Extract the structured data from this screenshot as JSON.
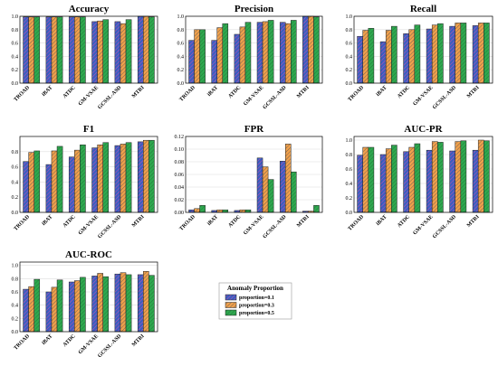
{
  "legend": {
    "title": "Anomaly Proportion",
    "entries": [
      "proportion=0.1",
      "proportion=0.3",
      "proportion=0.5"
    ]
  },
  "colors": {
    "proportion=0.1": "#3a5fc0",
    "proportion=0.3": "#f0a04b",
    "proportion=0.5": "#2fa84f"
  },
  "chart_data": [
    {
      "type": "bar",
      "title": "Accuracy",
      "categories": [
        "TROAD",
        "iBAT",
        "ATDC",
        "GM-VSAE",
        "GCSSL-ASD",
        "MTRI"
      ],
      "ylim": [
        0,
        1.0
      ],
      "yticks": [
        0.0,
        0.2,
        0.4,
        0.6,
        0.8,
        1.0
      ],
      "grid": true,
      "series": [
        {
          "name": "proportion=0.1",
          "values": [
            0.99,
            0.99,
            0.99,
            0.92,
            0.92,
            1.0
          ]
        },
        {
          "name": "proportion=0.3",
          "values": [
            0.99,
            0.99,
            0.99,
            0.93,
            0.89,
            1.0
          ]
        },
        {
          "name": "proportion=0.5",
          "values": [
            0.99,
            0.99,
            0.99,
            0.95,
            0.95,
            0.99
          ]
        }
      ]
    },
    {
      "type": "bar",
      "title": "Precision",
      "categories": [
        "TROAD",
        "iBAT",
        "ATDC",
        "GM-VSAE",
        "GCSSL-ASD",
        "MTRI"
      ],
      "ylim": [
        0,
        1.0
      ],
      "yticks": [
        0.0,
        0.2,
        0.4,
        0.6,
        0.8,
        1.0
      ],
      "grid": true,
      "series": [
        {
          "name": "proportion=0.1",
          "values": [
            0.64,
            0.64,
            0.73,
            0.91,
            0.91,
            1.0
          ]
        },
        {
          "name": "proportion=0.3",
          "values": [
            0.8,
            0.83,
            0.84,
            0.92,
            0.89,
            1.0
          ]
        },
        {
          "name": "proportion=0.5",
          "values": [
            0.8,
            0.89,
            0.91,
            0.94,
            0.94,
            0.99
          ]
        }
      ]
    },
    {
      "type": "bar",
      "title": "Recall",
      "categories": [
        "TROAD",
        "iBAT",
        "ATDC",
        "GM-VSAE",
        "GCSSL-ASD",
        "MTRI"
      ],
      "ylim": [
        0,
        1.0
      ],
      "yticks": [
        0.0,
        0.2,
        0.4,
        0.6,
        0.8,
        1.0
      ],
      "grid": true,
      "series": [
        {
          "name": "proportion=0.1",
          "values": [
            0.7,
            0.62,
            0.74,
            0.81,
            0.85,
            0.86
          ]
        },
        {
          "name": "proportion=0.3",
          "values": [
            0.79,
            0.79,
            0.8,
            0.87,
            0.9,
            0.9
          ]
        },
        {
          "name": "proportion=0.5",
          "values": [
            0.82,
            0.85,
            0.87,
            0.89,
            0.9,
            0.9
          ]
        }
      ]
    },
    {
      "type": "bar",
      "title": "F1",
      "categories": [
        "TROAD",
        "iBAT",
        "ATDC",
        "GM-VSAE",
        "GCSSL-ASD",
        "MTRI"
      ],
      "ylim": [
        0,
        1.0
      ],
      "yticks": [
        0.0,
        0.2,
        0.4,
        0.6,
        0.8
      ],
      "grid": true,
      "series": [
        {
          "name": "proportion=0.1",
          "values": [
            0.67,
            0.63,
            0.73,
            0.85,
            0.88,
            0.93
          ]
        },
        {
          "name": "proportion=0.3",
          "values": [
            0.79,
            0.81,
            0.82,
            0.89,
            0.9,
            0.95
          ]
        },
        {
          "name": "proportion=0.5",
          "values": [
            0.81,
            0.87,
            0.89,
            0.92,
            0.92,
            0.95
          ]
        }
      ]
    },
    {
      "type": "bar",
      "title": "FPR",
      "categories": [
        "TROAD",
        "iBAT",
        "ATDC",
        "GM-VSAE",
        "GCSSL-ASD",
        "MTRI"
      ],
      "ylim": [
        0,
        0.12
      ],
      "yticks": [
        0.0,
        0.02,
        0.04,
        0.06,
        0.08,
        0.1,
        0.12
      ],
      "grid": true,
      "series": [
        {
          "name": "proportion=0.1",
          "values": [
            0.004,
            0.003,
            0.003,
            0.086,
            0.081,
            0.002
          ]
        },
        {
          "name": "proportion=0.3",
          "values": [
            0.006,
            0.004,
            0.004,
            0.072,
            0.108,
            0.002
          ]
        },
        {
          "name": "proportion=0.5",
          "values": [
            0.011,
            0.004,
            0.004,
            0.052,
            0.064,
            0.011
          ]
        }
      ]
    },
    {
      "type": "bar",
      "title": "AUC-PR",
      "categories": [
        "TROAD",
        "iBAT",
        "ATDC",
        "GM-VSAE",
        "GCSSL-ASD",
        "MTRI"
      ],
      "ylim": [
        0,
        1.05
      ],
      "yticks": [
        0.0,
        0.2,
        0.4,
        0.6,
        0.8,
        1.0
      ],
      "grid": true,
      "series": [
        {
          "name": "proportion=0.1",
          "values": [
            0.79,
            0.8,
            0.84,
            0.86,
            0.85,
            0.86
          ]
        },
        {
          "name": "proportion=0.3",
          "values": [
            0.9,
            0.88,
            0.9,
            0.98,
            0.98,
            1.0
          ]
        },
        {
          "name": "proportion=0.5",
          "values": [
            0.9,
            0.93,
            0.95,
            0.97,
            0.99,
            0.99
          ]
        }
      ]
    },
    {
      "type": "bar",
      "title": "AUC-ROC",
      "categories": [
        "TROAD",
        "iBAT",
        "ATDC",
        "GM-VSAE",
        "GCSSL-ASD",
        "MTRI"
      ],
      "ylim": [
        0,
        1.05
      ],
      "yticks": [
        0.0,
        0.2,
        0.4,
        0.6,
        0.8,
        1.0
      ],
      "grid": true,
      "series": [
        {
          "name": "proportion=0.1",
          "values": [
            0.64,
            0.6,
            0.75,
            0.84,
            0.87,
            0.86
          ]
        },
        {
          "name": "proportion=0.3",
          "values": [
            0.68,
            0.67,
            0.77,
            0.88,
            0.89,
            0.91
          ]
        },
        {
          "name": "proportion=0.5",
          "values": [
            0.79,
            0.78,
            0.82,
            0.83,
            0.86,
            0.85
          ]
        }
      ]
    }
  ]
}
